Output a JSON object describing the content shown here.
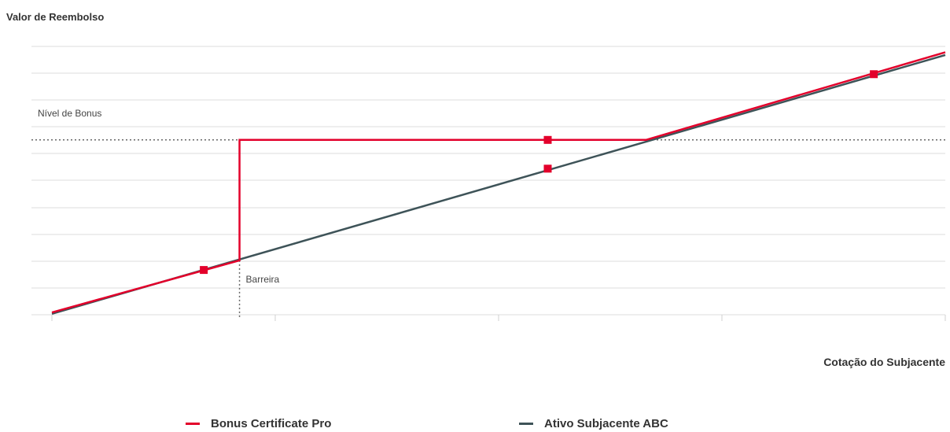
{
  "chart_data": {
    "type": "line",
    "title": "",
    "ylabel": "Valor de Reembolso",
    "xlabel": "Cotação do Subjacente",
    "grid": true,
    "legend_position": "bottom",
    "xlim": [
      0,
      100
    ],
    "ylim": [
      0,
      100
    ],
    "bonus_level": 65,
    "barrier": 21,
    "annotations": {
      "bonus_level_label": "Nível de Bonus",
      "barrier_label": "Barreira"
    },
    "series": [
      {
        "name": "Bonus Certificate Pro",
        "color": "#e3002b",
        "x": [
          0,
          21,
          21,
          66.5,
          100
        ],
        "y": [
          2,
          21,
          65,
          65,
          97
        ],
        "markers": [
          {
            "x": 17,
            "y": 17.5
          },
          {
            "x": 55.5,
            "y": 65
          },
          {
            "x": 92,
            "y": 89
          }
        ]
      },
      {
        "name": "Ativo Subjacente ABC",
        "color": "#3e5358",
        "x": [
          0,
          100
        ],
        "y": [
          1.5,
          96
        ],
        "markers": [
          {
            "x": 55.5,
            "y": 54.5
          }
        ]
      }
    ]
  }
}
